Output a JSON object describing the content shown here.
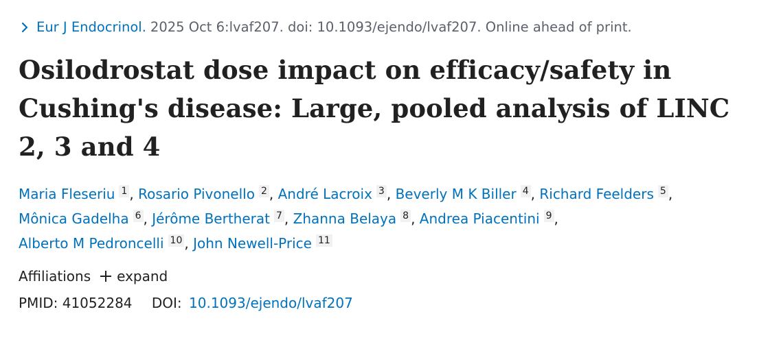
{
  "citation": {
    "journal": "Eur J Endocrinol.",
    "details": "2025 Oct 6:lvaf207. doi: 10.1093/ejendo/lvaf207. Online ahead of print."
  },
  "title": "Osilodrostat dose impact on efficacy/safety in Cushing's disease: Large, pooled analysis of LINC 2, 3 and 4",
  "authors": [
    {
      "name": "Maria Fleseriu",
      "aff": "1"
    },
    {
      "name": "Rosario Pivonello",
      "aff": "2"
    },
    {
      "name": "André Lacroix",
      "aff": "3"
    },
    {
      "name": "Beverly M K Biller",
      "aff": "4"
    },
    {
      "name": "Richard Feelders",
      "aff": "5"
    },
    {
      "name": "Mônica Gadelha",
      "aff": "6"
    },
    {
      "name": "Jérôme Bertherat",
      "aff": "7"
    },
    {
      "name": "Zhanna Belaya",
      "aff": "8"
    },
    {
      "name": "Andrea Piacentini",
      "aff": "9"
    },
    {
      "name": "Alberto M Pedroncelli",
      "aff": "10"
    },
    {
      "name": "John Newell-Price",
      "aff": "11"
    }
  ],
  "affiliations": {
    "label": "Affiliations",
    "expand_label": "expand"
  },
  "ids": {
    "pmid_label": "PMID:",
    "pmid_value": "41052284",
    "doi_label": "DOI:",
    "doi_value": "10.1093/ejendo/lvaf207"
  },
  "colors": {
    "link": "#0071bc",
    "text": "#212121",
    "muted": "#5b616b"
  },
  "icons": {
    "citation": "chevron-right-icon",
    "expand": "plus-icon"
  }
}
